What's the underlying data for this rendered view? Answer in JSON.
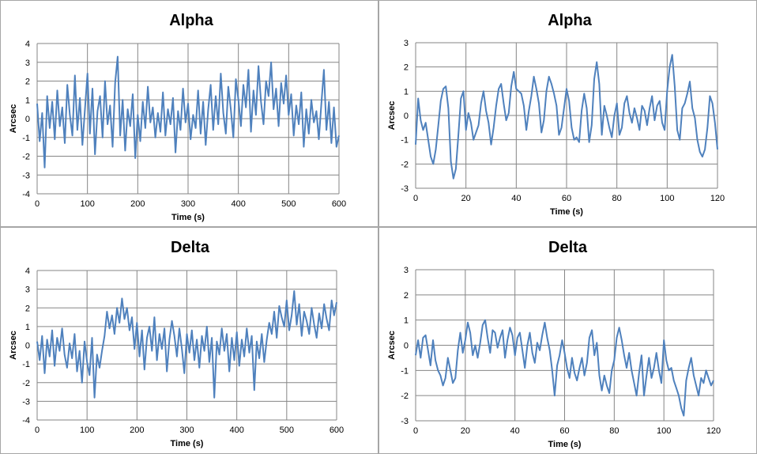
{
  "chart_data": [
    {
      "type": "line",
      "title": "Alpha",
      "xlabel": "Time (s)",
      "ylabel": "Arcsec",
      "xlim": [
        0,
        600
      ],
      "ylim": [
        -4,
        4
      ],
      "xticks": [
        0,
        100,
        200,
        300,
        400,
        500,
        600
      ],
      "yticks": [
        -4,
        -3,
        -2,
        -1,
        0,
        1,
        2,
        3,
        4
      ],
      "grid": true,
      "series_color": "#4f81bd",
      "series": [
        {
          "x": [
            0,
            5,
            10,
            15,
            20,
            25,
            30,
            35,
            40,
            45,
            50,
            55,
            60,
            65,
            70,
            75,
            80,
            85,
            90,
            95,
            100,
            105,
            110,
            115,
            120,
            125,
            130,
            135,
            140,
            145,
            150,
            155,
            160,
            165,
            170,
            175,
            180,
            185,
            190,
            195,
            200,
            205,
            210,
            215,
            220,
            225,
            230,
            235,
            240,
            245,
            250,
            255,
            260,
            265,
            270,
            275,
            280,
            285,
            290,
            295,
            300,
            305,
            310,
            315,
            320,
            325,
            330,
            335,
            340,
            345,
            350,
            355,
            360,
            365,
            370,
            375,
            380,
            385,
            390,
            395,
            400,
            405,
            410,
            415,
            420,
            425,
            430,
            435,
            440,
            445,
            450,
            455,
            460,
            465,
            470,
            475,
            480,
            485,
            490,
            495,
            500,
            505,
            510,
            515,
            520,
            525,
            530,
            535,
            540,
            545,
            550,
            555,
            560,
            565,
            570,
            575,
            580,
            585,
            590,
            595,
            600
          ],
          "y": [
            0.8,
            -1.2,
            0.3,
            -2.6,
            1.2,
            -0.5,
            0.9,
            -1.1,
            1.5,
            -0.4,
            0.6,
            -1.3,
            1.8,
            0.2,
            -0.9,
            2.3,
            -0.6,
            1.1,
            -1.4,
            0.5,
            2.4,
            -0.8,
            1.6,
            -1.9,
            0.4,
            1.2,
            -1.0,
            2.0,
            -0.3,
            0.7,
            -1.5,
            1.9,
            3.3,
            -0.9,
            1.0,
            -1.7,
            0.5,
            -0.4,
            1.3,
            -2.1,
            0.2,
            -1.2,
            0.9,
            -0.5,
            1.7,
            -0.2,
            0.6,
            -1.0,
            0.3,
            -0.7,
            1.4,
            -0.9,
            0.5,
            -0.3,
            1.1,
            -1.8,
            0.4,
            -0.6,
            1.6,
            -0.2,
            0.8,
            -1.1,
            0.2,
            -0.5,
            1.5,
            -0.8,
            0.9,
            -1.4,
            0.5,
            1.8,
            -0.6,
            1.2,
            -0.3,
            2.4,
            0.3,
            -0.8,
            1.7,
            0.5,
            -1.0,
            2.1,
            1.0,
            -0.4,
            1.8,
            0.6,
            2.6,
            -0.7,
            1.5,
            0.2,
            2.8,
            0.9,
            -0.3,
            2.0,
            1.2,
            3.0,
            0.5,
            1.6,
            -0.4,
            1.9,
            0.8,
            2.3,
            0.2,
            1.3,
            -0.9,
            0.7,
            -0.3,
            1.4,
            -1.5,
            0.5,
            -0.8,
            1.0,
            -0.2,
            0.4,
            -1.1,
            0.8,
            2.6,
            -0.6,
            0.9,
            -1.3,
            0.6,
            -1.5,
            -0.9
          ]
        }
      ]
    },
    {
      "type": "line",
      "title": "Alpha",
      "xlabel": "Time (s)",
      "ylabel": "Arcsec",
      "xlim": [
        0,
        120
      ],
      "ylim": [
        -3,
        3
      ],
      "xticks": [
        0,
        20,
        40,
        60,
        80,
        100,
        120
      ],
      "yticks": [
        -3,
        -2,
        -1,
        0,
        1,
        2,
        3
      ],
      "grid": true,
      "series_color": "#4f81bd",
      "series": [
        {
          "x": [
            0,
            1,
            2,
            3,
            4,
            5,
            6,
            7,
            8,
            9,
            10,
            11,
            12,
            13,
            14,
            15,
            16,
            17,
            18,
            19,
            20,
            21,
            22,
            23,
            24,
            25,
            26,
            27,
            28,
            29,
            30,
            31,
            32,
            33,
            34,
            35,
            36,
            37,
            38,
            39,
            40,
            41,
            42,
            43,
            44,
            45,
            46,
            47,
            48,
            49,
            50,
            51,
            52,
            53,
            54,
            55,
            56,
            57,
            58,
            59,
            60,
            61,
            62,
            63,
            64,
            65,
            66,
            67,
            68,
            69,
            70,
            71,
            72,
            73,
            74,
            75,
            76,
            77,
            78,
            79,
            80,
            81,
            82,
            83,
            84,
            85,
            86,
            87,
            88,
            89,
            90,
            91,
            92,
            93,
            94,
            95,
            96,
            97,
            98,
            99,
            100,
            101,
            102,
            103,
            104,
            105,
            106,
            107,
            108,
            109,
            110,
            111,
            112,
            113,
            114,
            115,
            116,
            117,
            118,
            119,
            120
          ],
          "y": [
            -1.2,
            0.7,
            -0.2,
            -0.6,
            -0.3,
            -1.0,
            -1.7,
            -2.0,
            -1.4,
            -0.4,
            0.6,
            1.1,
            1.2,
            0.3,
            -1.9,
            -2.6,
            -2.2,
            -0.8,
            0.7,
            1.0,
            -0.6,
            0.1,
            -0.3,
            -1.0,
            -0.7,
            -0.4,
            0.5,
            1.0,
            0.2,
            -0.3,
            -1.2,
            -0.5,
            0.4,
            1.1,
            1.3,
            0.5,
            -0.2,
            0.1,
            1.2,
            1.8,
            1.1,
            1.0,
            0.9,
            0.4,
            -0.6,
            0.2,
            0.8,
            1.6,
            1.1,
            0.5,
            -0.7,
            -0.2,
            1.0,
            1.6,
            1.3,
            0.9,
            0.4,
            -0.8,
            -0.5,
            0.3,
            1.1,
            0.6,
            -0.5,
            -1.0,
            -0.9,
            -1.1,
            0.2,
            0.9,
            0.3,
            -1.1,
            -0.4,
            1.5,
            2.2,
            1.3,
            -0.8,
            0.4,
            0.0,
            -0.5,
            -0.9,
            0.0,
            0.5,
            -0.8,
            -0.5,
            0.5,
            0.8,
            0.1,
            -0.3,
            0.3,
            -0.1,
            -0.6,
            0.4,
            0.2,
            -0.4,
            0.3,
            0.8,
            -0.2,
            0.4,
            0.6,
            -0.3,
            -0.6,
            1.0,
            2.0,
            2.5,
            1.2,
            -0.6,
            -1.0,
            0.3,
            0.5,
            0.9,
            1.4,
            0.3,
            -0.1,
            -1.0,
            -1.5,
            -1.7,
            -1.4,
            -0.5,
            0.8,
            0.5,
            -0.3,
            -1.4
          ]
        }
      ]
    },
    {
      "type": "line",
      "title": "Delta",
      "xlabel": "Time (s)",
      "ylabel": "Arcsec",
      "xlim": [
        0,
        600
      ],
      "ylim": [
        -4,
        4
      ],
      "xticks": [
        0,
        100,
        200,
        300,
        400,
        500,
        600
      ],
      "yticks": [
        -4,
        -3,
        -2,
        -1,
        0,
        1,
        2,
        3,
        4
      ],
      "grid": true,
      "series_color": "#4f81bd",
      "series": [
        {
          "x": [
            0,
            5,
            10,
            15,
            20,
            25,
            30,
            35,
            40,
            45,
            50,
            55,
            60,
            65,
            70,
            75,
            80,
            85,
            90,
            95,
            100,
            105,
            110,
            115,
            120,
            125,
            130,
            135,
            140,
            145,
            150,
            155,
            160,
            165,
            170,
            175,
            180,
            185,
            190,
            195,
            200,
            205,
            210,
            215,
            220,
            225,
            230,
            235,
            240,
            245,
            250,
            255,
            260,
            265,
            270,
            275,
            280,
            285,
            290,
            295,
            300,
            305,
            310,
            315,
            320,
            325,
            330,
            335,
            340,
            345,
            350,
            355,
            360,
            365,
            370,
            375,
            380,
            385,
            390,
            395,
            400,
            405,
            410,
            415,
            420,
            425,
            430,
            435,
            440,
            445,
            450,
            455,
            460,
            465,
            470,
            475,
            480,
            485,
            490,
            495,
            500,
            505,
            510,
            515,
            520,
            525,
            530,
            535,
            540,
            545,
            550,
            555,
            560,
            565,
            570,
            575,
            580,
            585,
            590,
            595,
            600
          ],
          "y": [
            0.2,
            -0.8,
            0.5,
            -1.5,
            0.3,
            -0.6,
            0.8,
            -1.1,
            0.4,
            -0.3,
            0.9,
            -0.5,
            -1.2,
            0.1,
            -0.7,
            0.6,
            -1.4,
            -0.3,
            -2.0,
            0.2,
            -0.9,
            -1.6,
            0.4,
            -2.8,
            -0.5,
            -1.2,
            -0.3,
            0.5,
            1.8,
            0.9,
            1.6,
            0.6,
            2.0,
            1.2,
            2.5,
            1.4,
            2.0,
            0.8,
            1.5,
            -0.2,
            1.2,
            -0.6,
            0.8,
            -1.3,
            0.4,
            1.0,
            -0.3,
            1.5,
            -0.8,
            0.6,
            -0.2,
            0.9,
            -1.4,
            0.3,
            1.3,
            0.5,
            -0.6,
            0.9,
            -0.2,
            -1.5,
            0.6,
            -0.4,
            0.8,
            -0.8,
            0.3,
            -1.2,
            0.5,
            -0.3,
            1.0,
            -0.9,
            0.4,
            -2.8,
            0.2,
            -0.5,
            0.9,
            -0.3,
            0.6,
            -1.4,
            0.4,
            -0.8,
            0.7,
            -1.1,
            0.3,
            -0.6,
            0.9,
            -0.4,
            0.5,
            -2.4,
            0.2,
            -0.7,
            0.6,
            -0.9,
            0.3,
            1.2,
            0.6,
            1.8,
            0.4,
            2.1,
            1.5,
            1.0,
            2.4,
            0.8,
            1.6,
            2.9,
            1.1,
            2.2,
            0.5,
            1.8,
            1.3,
            0.6,
            2.0,
            1.1,
            0.4,
            1.7,
            0.9,
            2.2,
            1.4,
            0.8,
            2.4,
            1.6,
            2.3
          ]
        }
      ]
    },
    {
      "type": "line",
      "title": "Delta",
      "xlabel": "Time (s)",
      "ylabel": "Arcsec",
      "xlim": [
        0,
        120
      ],
      "ylim": [
        -3,
        3
      ],
      "xticks": [
        0,
        20,
        40,
        60,
        80,
        100,
        120
      ],
      "yticks": [
        -3,
        -2,
        -1,
        0,
        1,
        2,
        3
      ],
      "grid": true,
      "series_color": "#4f81bd",
      "series": [
        {
          "x": [
            0,
            1,
            2,
            3,
            4,
            5,
            6,
            7,
            8,
            9,
            10,
            11,
            12,
            13,
            14,
            15,
            16,
            17,
            18,
            19,
            20,
            21,
            22,
            23,
            24,
            25,
            26,
            27,
            28,
            29,
            30,
            31,
            32,
            33,
            34,
            35,
            36,
            37,
            38,
            39,
            40,
            41,
            42,
            43,
            44,
            45,
            46,
            47,
            48,
            49,
            50,
            51,
            52,
            53,
            54,
            55,
            56,
            57,
            58,
            59,
            60,
            61,
            62,
            63,
            64,
            65,
            66,
            67,
            68,
            69,
            70,
            71,
            72,
            73,
            74,
            75,
            76,
            77,
            78,
            79,
            80,
            81,
            82,
            83,
            84,
            85,
            86,
            87,
            88,
            89,
            90,
            91,
            92,
            93,
            94,
            95,
            96,
            97,
            98,
            99,
            100,
            101,
            102,
            103,
            104,
            105,
            106,
            107,
            108,
            109,
            110,
            111,
            112,
            113,
            114,
            115,
            116,
            117,
            118,
            119,
            120
          ],
          "y": [
            -0.4,
            0.2,
            -0.5,
            0.3,
            0.4,
            -0.2,
            -0.8,
            0.2,
            -0.6,
            -1.0,
            -1.2,
            -1.6,
            -1.3,
            -0.5,
            -1.0,
            -1.5,
            -1.3,
            -0.2,
            0.5,
            -0.3,
            0.2,
            0.9,
            0.5,
            -0.4,
            0.0,
            -0.5,
            0.1,
            0.8,
            1.0,
            0.3,
            -0.3,
            0.6,
            0.5,
            -0.1,
            0.3,
            0.6,
            -0.5,
            0.2,
            0.7,
            0.4,
            -0.4,
            0.3,
            0.5,
            -0.2,
            -0.9,
            0.0,
            0.5,
            -0.3,
            -0.7,
            0.1,
            -0.2,
            0.4,
            0.9,
            0.3,
            -0.2,
            -1.0,
            -2.0,
            -0.8,
            -0.4,
            0.2,
            -0.3,
            -0.9,
            -1.3,
            -0.5,
            -1.1,
            -1.4,
            -0.9,
            -0.5,
            -1.2,
            -0.7,
            0.3,
            0.6,
            -0.4,
            0.1,
            -1.2,
            -1.8,
            -1.2,
            -1.6,
            -1.9,
            -1.0,
            -0.6,
            0.3,
            0.7,
            0.2,
            -0.4,
            -0.9,
            -0.3,
            -1.0,
            -1.5,
            -2.0,
            -1.1,
            -0.4,
            -2.0,
            -1.2,
            -0.5,
            -1.3,
            -0.9,
            -0.3,
            -1.0,
            -1.5,
            0.2,
            -0.6,
            -1.0,
            -0.9,
            -1.4,
            -1.7,
            -2.0,
            -2.5,
            -2.8,
            -1.4,
            -0.9,
            -0.5,
            -1.2,
            -1.6,
            -2.0,
            -1.3,
            -1.5,
            -1.0,
            -1.3,
            -1.6,
            -1.4
          ]
        }
      ]
    }
  ]
}
